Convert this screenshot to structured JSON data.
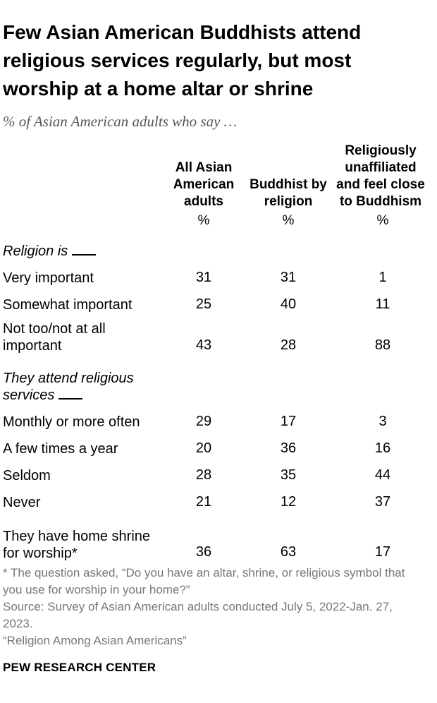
{
  "title": "Few Asian American Buddhists attend religious services regularly, but most worship at a home altar or shrine",
  "subtitle": "% of Asian American adults who say …",
  "chart_data": {
    "type": "table",
    "columns": [
      {
        "label": "All Asian American adults",
        "unit": "%"
      },
      {
        "label": "Buddhist by religion",
        "unit": "%"
      },
      {
        "label": "Religiously unaffiliated and feel close to Buddhism",
        "unit": "%"
      }
    ],
    "sections": [
      {
        "label": "Religion is",
        "rows": [
          {
            "label": "Very important",
            "values": [
              31,
              31,
              1
            ]
          },
          {
            "label": "Somewhat important",
            "values": [
              25,
              40,
              11
            ]
          },
          {
            "label": "Not too/not at all important",
            "values": [
              43,
              28,
              88
            ]
          }
        ]
      },
      {
        "label": "They attend religious services",
        "rows": [
          {
            "label": "Monthly or more often",
            "values": [
              29,
              17,
              3
            ]
          },
          {
            "label": "A few times a year",
            "values": [
              20,
              36,
              16
            ]
          },
          {
            "label": "Seldom",
            "values": [
              28,
              35,
              44
            ]
          },
          {
            "label": "Never",
            "values": [
              21,
              12,
              37
            ]
          }
        ]
      },
      {
        "label": "",
        "rows": [
          {
            "label": "They have home shrine for worship*",
            "values": [
              36,
              63,
              17
            ]
          }
        ]
      }
    ]
  },
  "notes": [
    "* The question asked, “Do you have an altar, shrine, or religious symbol that you use for worship in your home?”",
    "Source: Survey of Asian American adults conducted July 5, 2022-Jan. 27, 2023.",
    "“Religion Among Asian Americans”"
  ],
  "brand": "PEW RESEARCH CENTER"
}
